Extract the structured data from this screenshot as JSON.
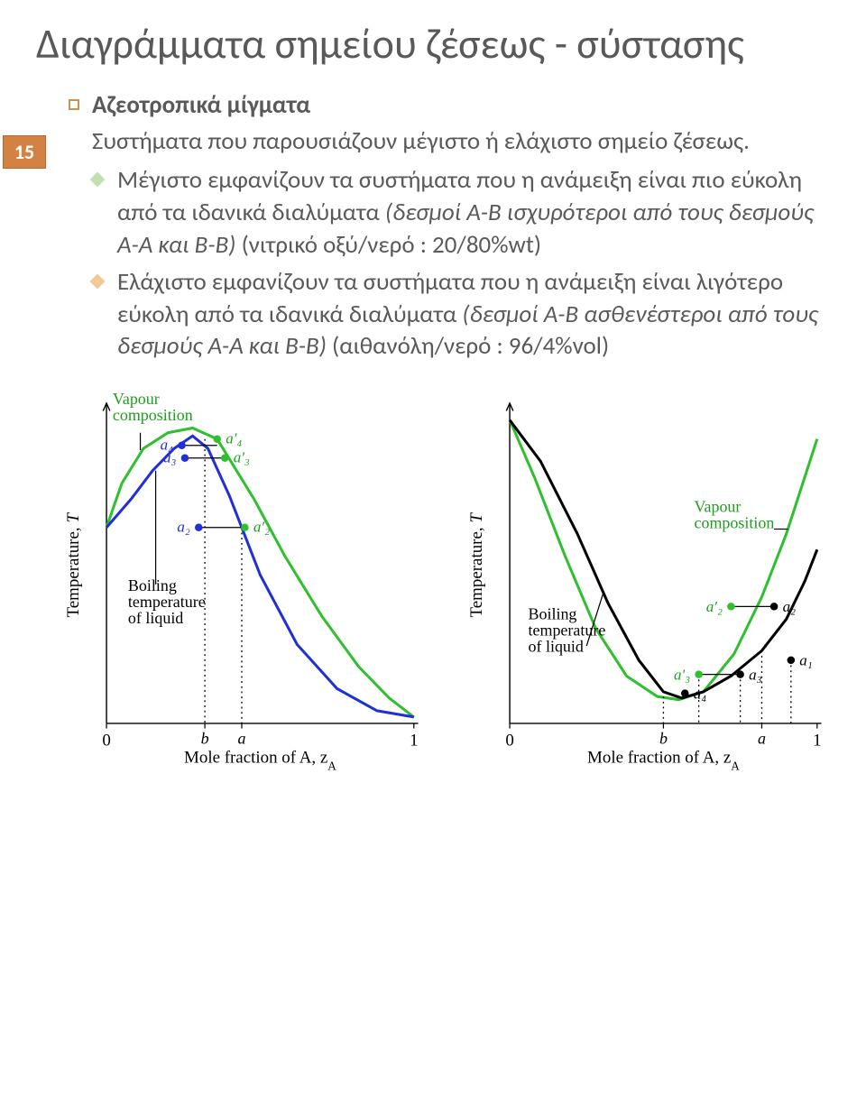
{
  "title": "Διαγράμματα σημείου ζέσεως - σύστασης",
  "slide_number": "15",
  "heading": "Αζεοτροπικά μίγματα",
  "intro": "Συστήματα που παρουσιάζουν μέγιστο ή ελάχιστο σημείο ζέσεως.",
  "bullets": [
    {
      "color": "green",
      "pre": "Μέγιστο εμφανίζουν τα συστήματα που η ανάμειξη είναι πιο εύκολη από τα ιδανικά διαλύματα ",
      "ital": "(δεσμοί Α-Β ισχυρότεροι από τους δεσμούς Α-Α και Β-Β)",
      "post": " (νιτρικό οξύ/νερό : 20/80%wt)"
    },
    {
      "color": "orange",
      "pre": "Ελάχιστο εμφανίζουν τα συστήματα που η ανάμειξη είναι λιγότερο εύκολη από τα ιδανικά διαλύματα ",
      "ital": "(δεσμοί Α-Β ασθενέστεροι από τους δεσμούς Α-Α και Β-Β)",
      "post": " (αιθανόλη/νερό : 96/4%vol)"
    }
  ],
  "chart_left": {
    "type": "phase-diagram-line",
    "stroke_blue": "#2030d8",
    "stroke_green": "#2fbf2f",
    "stroke_black": "#000000",
    "background": "#ffffff",
    "xlabel": "Mole fraction of A, z",
    "xlabel_sub": "A",
    "ylabel": "Temperature, T",
    "xticks": [
      {
        "x": 0,
        "label": "0"
      },
      {
        "x": 1,
        "label": "1"
      }
    ],
    "annotations": {
      "vapour": {
        "text": "Vapour\ncomposition",
        "color": "#1e9e1e"
      },
      "boiling": {
        "text": "Boiling\ntemperature\nof liquid",
        "color": "#000000"
      }
    },
    "marks": {
      "b": {
        "x": 0.32,
        "label": "b"
      },
      "a": {
        "x": 0.44,
        "label": "a"
      }
    },
    "points_blue": [
      {
        "x": 0.245,
        "y": 0.88,
        "label": "a₄"
      },
      {
        "x": 0.255,
        "y": 0.84,
        "label": "a₃"
      },
      {
        "x": 0.3,
        "y": 0.62,
        "label": "a₂"
      }
    ],
    "points_green": [
      {
        "x": 0.36,
        "y": 0.9,
        "label": "a′₄"
      },
      {
        "x": 0.385,
        "y": 0.84,
        "label": "a′₃"
      },
      {
        "x": 0.45,
        "y": 0.62,
        "label": "a′₂"
      }
    ],
    "curve_green_pts": [
      [
        0,
        0.62
      ],
      [
        0.05,
        0.76
      ],
      [
        0.12,
        0.87
      ],
      [
        0.2,
        0.92
      ],
      [
        0.28,
        0.935
      ],
      [
        0.36,
        0.9
      ],
      [
        0.48,
        0.71
      ],
      [
        0.58,
        0.53
      ],
      [
        0.7,
        0.34
      ],
      [
        0.82,
        0.18
      ],
      [
        0.92,
        0.08
      ],
      [
        1,
        0.02
      ]
    ],
    "curve_blue_pts": [
      [
        0,
        0.62
      ],
      [
        0.08,
        0.71
      ],
      [
        0.15,
        0.8
      ],
      [
        0.22,
        0.87
      ],
      [
        0.28,
        0.91
      ],
      [
        0.33,
        0.87
      ],
      [
        0.4,
        0.72
      ],
      [
        0.5,
        0.47
      ],
      [
        0.62,
        0.25
      ],
      [
        0.75,
        0.11
      ],
      [
        0.88,
        0.04
      ],
      [
        1,
        0.02
      ]
    ]
  },
  "chart_right": {
    "type": "phase-diagram-line",
    "stroke_black": "#000000",
    "stroke_green": "#2fbf2f",
    "background": "#ffffff",
    "xlabel": "Mole fraction of A, z",
    "xlabel_sub": "A",
    "ylabel": "Temperature, T",
    "xticks": [
      {
        "x": 0,
        "label": "0"
      },
      {
        "x": 1,
        "label": "1"
      }
    ],
    "annotations": {
      "vapour": {
        "text": "Vapour\ncomposition",
        "color": "#1e9e1e"
      },
      "boiling": {
        "text": "Boiling\ntemperature\nof liquid",
        "color": "#000000"
      }
    },
    "marks": {
      "b": {
        "x": 0.5,
        "label": "b"
      },
      "a": {
        "x": 0.82,
        "label": "a"
      }
    },
    "points_black": [
      {
        "x": 0.915,
        "y": 0.2,
        "label": "a₁"
      },
      {
        "x": 0.86,
        "y": 0.37,
        "label": "a₂"
      },
      {
        "x": 0.75,
        "y": 0.155,
        "label": "a₃"
      },
      {
        "x": 0.57,
        "y": 0.095,
        "label": "a₄"
      }
    ],
    "points_green": [
      {
        "x": 0.72,
        "y": 0.37,
        "label": "a′₂"
      },
      {
        "x": 0.615,
        "y": 0.155,
        "label": "a′₃"
      }
    ],
    "curve_green_pts": [
      [
        0,
        0.96
      ],
      [
        0.08,
        0.78
      ],
      [
        0.18,
        0.53
      ],
      [
        0.28,
        0.3
      ],
      [
        0.38,
        0.15
      ],
      [
        0.48,
        0.085
      ],
      [
        0.55,
        0.075
      ],
      [
        0.63,
        0.1
      ],
      [
        0.73,
        0.22
      ],
      [
        0.82,
        0.4
      ],
      [
        0.9,
        0.6
      ],
      [
        0.96,
        0.78
      ],
      [
        1,
        0.9
      ]
    ],
    "curve_black_pts": [
      [
        0,
        0.96
      ],
      [
        0.1,
        0.83
      ],
      [
        0.22,
        0.6
      ],
      [
        0.32,
        0.38
      ],
      [
        0.42,
        0.2
      ],
      [
        0.5,
        0.1
      ],
      [
        0.56,
        0.08
      ],
      [
        0.63,
        0.1
      ],
      [
        0.72,
        0.15
      ],
      [
        0.82,
        0.23
      ],
      [
        0.9,
        0.33
      ],
      [
        0.96,
        0.45
      ],
      [
        1,
        0.55
      ]
    ]
  }
}
